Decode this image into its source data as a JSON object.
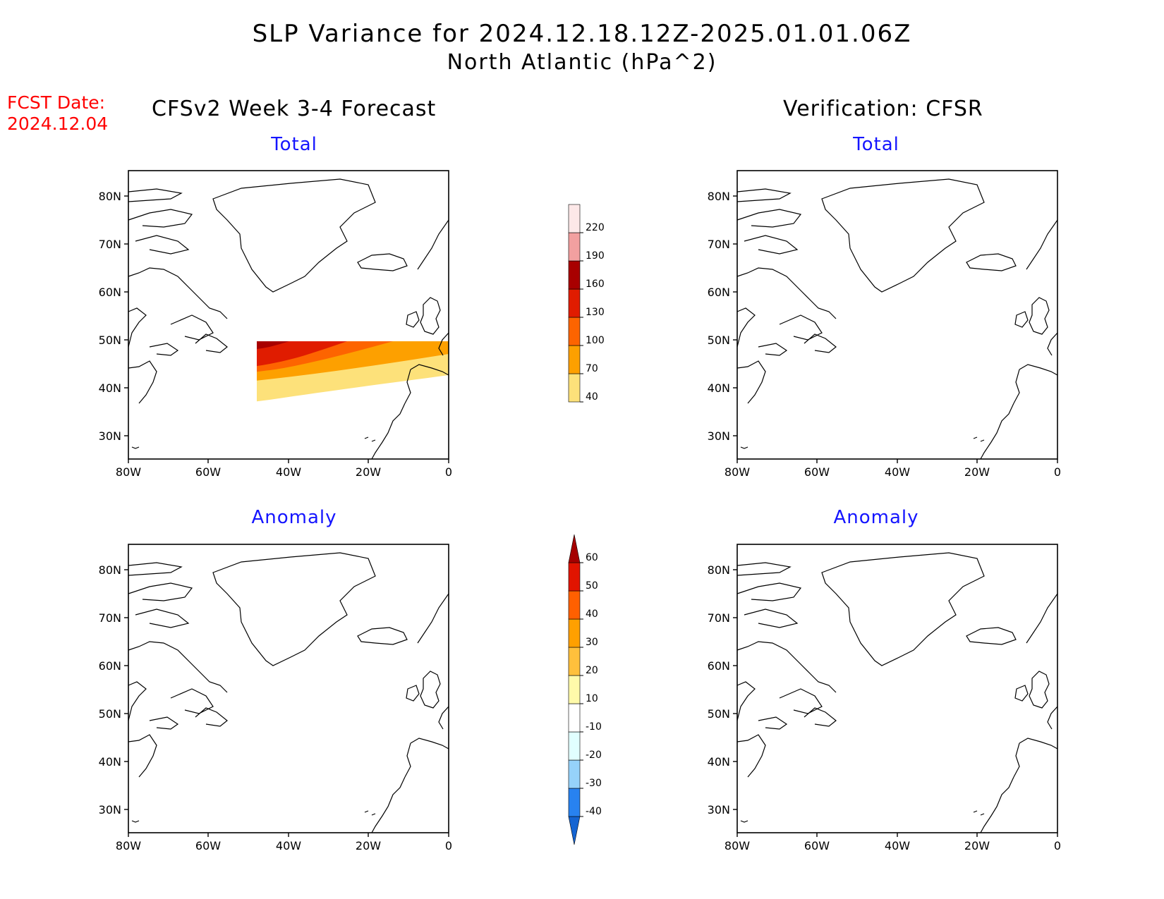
{
  "header": {
    "title_line1": "SLP Variance for 2024.12.18.12Z-2025.01.01.06Z",
    "title_line2": "North Atlantic (hPa^2)",
    "fcst_label": "FCST Date:",
    "fcst_date": "2024.12.04"
  },
  "columns": {
    "left_heading": "CFSv2 Week 3-4 Forecast",
    "right_heading": "Verification: CFSR"
  },
  "panels": {
    "forecast_total_title": "Total",
    "verification_total_title": "Total",
    "forecast_anomaly_title": "Anomaly",
    "verification_anomaly_title": "Anomaly"
  },
  "axes": {
    "lat_labels": [
      "80N",
      "70N",
      "60N",
      "50N",
      "40N",
      "30N"
    ],
    "lon_labels": [
      "80W",
      "60W",
      "40W",
      "20W",
      "0"
    ]
  },
  "colorbars": {
    "total": {
      "levels": [
        "40",
        "70",
        "100",
        "130",
        "160",
        "190",
        "220"
      ],
      "colors": [
        "#fde17a",
        "#fda000",
        "#fd6400",
        "#e01c00",
        "#a80000",
        "#f2a0a0",
        "#fde8e8"
      ]
    },
    "anomaly": {
      "levels": [
        "-40",
        "-30",
        "-20",
        "-10",
        "10",
        "20",
        "30",
        "40",
        "50",
        "60"
      ],
      "colors": [
        "#1464d2",
        "#2882f0",
        "#96d2fa",
        "#e1ffff",
        "#ffffff",
        "#fffaaa",
        "#ffc03c",
        "#ffa000",
        "#ff6000",
        "#e11400",
        "#a50000"
      ]
    }
  }
}
